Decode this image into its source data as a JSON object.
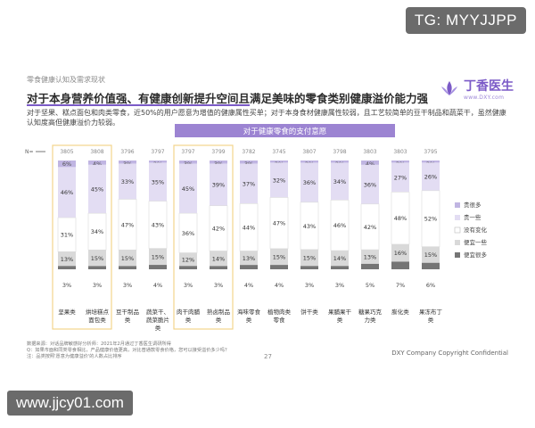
{
  "badges": {
    "top_right": "TG: MYYJJPP",
    "bottom_left": "www.jjcy01.com"
  },
  "header": {
    "section": "零食健康认知及需求现状",
    "title": "对于本身营养价值强、有健康创新提升空间且满足美味的零食类别健康溢价能力强",
    "description": "对于坚果、糕点面包和肉类零食，近50%的用户愿意为增值的健康属性买单；对于本身食材健康属性较弱，且工艺较简单的豆干制品和蔬菜干，虽然健康认知度高但健康溢价力较弱。"
  },
  "logo": {
    "name": "丁香医生",
    "sub": "www.DXY.com"
  },
  "footer": {
    "notes": [
      "数据来源：对话品牌敏感好分析师：2021年2月通过丁香医生调研所得",
      "Q：如果市面和同类零食相比，产品健康价值更高，对比普通款零食价格，您可以接受溢价多少吗？",
      "注：品类按照'愿意为健康溢价'的人数占比排序"
    ],
    "company": "DXY Company Copyright Confidential",
    "page": "27"
  },
  "colors": {
    "accent": "#7b5ac7",
    "header_band": "#9c84d2",
    "series": [
      "#c0b5e2",
      "#e3ddf3",
      "#ffffff",
      "#d9d9d9",
      "#757575"
    ],
    "highlight_border": "#f2d48c"
  },
  "chart_data": {
    "type": "bar",
    "stacked": true,
    "normalized": true,
    "title": "对于健康零食的支付意愿",
    "n_label": "N=",
    "n_values": [
      "3805",
      "3808",
      "3796",
      "3797",
      "3797",
      "3799",
      "3782",
      "3745",
      "3807",
      "3798",
      "3803",
      "3803",
      "3795"
    ],
    "categories": [
      "坚果类",
      "烘培糕点面包类",
      "豆干制品类",
      "蔬菜干、蔬菜脆片类",
      "肉干肉脯类",
      "熟卤制品类",
      "海味零食类",
      "植物肉类零食",
      "饼干类",
      "果脯果干类",
      "糖果巧克力类",
      "膨化类",
      "果冻布丁类"
    ],
    "series": [
      {
        "name": "贵很多",
        "values": [
          6,
          4,
          3,
          2,
          3,
          3,
          3,
          2,
          2,
          2,
          4,
          2,
          2
        ]
      },
      {
        "name": "贵一些",
        "values": [
          46,
          45,
          33,
          35,
          45,
          39,
          37,
          32,
          36,
          34,
          36,
          27,
          26
        ]
      },
      {
        "name": "没有变化",
        "values": [
          31,
          34,
          47,
          43,
          36,
          42,
          44,
          47,
          43,
          46,
          42,
          48,
          52
        ]
      },
      {
        "name": "便宜一些",
        "values": [
          13,
          15,
          15,
          15,
          12,
          14,
          13,
          15,
          15,
          14,
          13,
          16,
          15
        ]
      },
      {
        "name": "便宜很多",
        "values": [
          3,
          3,
          3,
          4,
          3,
          3,
          4,
          4,
          3,
          3,
          5,
          7,
          6
        ]
      }
    ],
    "highlighted_categories": [
      "坚果类",
      "烘培糕点面包类",
      "肉干肉脯类",
      "熟卤制品类"
    ],
    "legend_position": "right",
    "ylim": [
      0,
      100
    ]
  }
}
